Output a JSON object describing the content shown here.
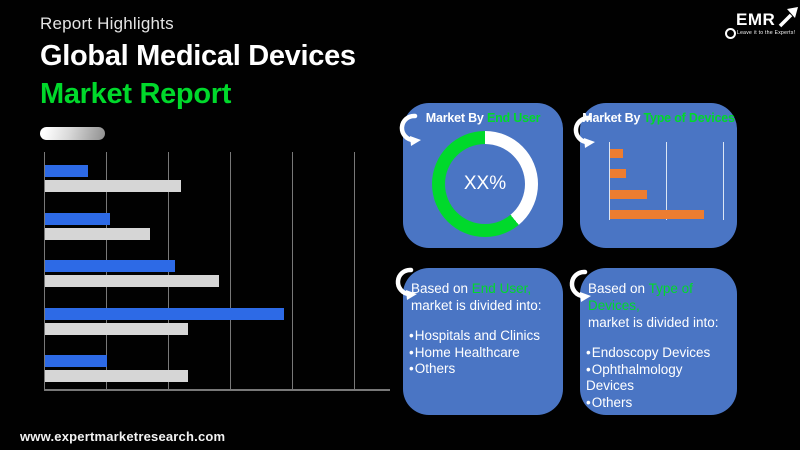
{
  "colors": {
    "background": "#010101",
    "panel_blue": "#4a75c4",
    "green": "#00d92b",
    "chart_blue": "#2d6ae6",
    "chart_gray": "#d6d6d6",
    "orange": "#ed7d31",
    "gridline_gray": "#787878",
    "gridline_light": "#dce6f4"
  },
  "header": {
    "eyebrow": "Report Highlights",
    "title_line1": "Global Medical Devices",
    "title_line2": "Market Report"
  },
  "logo": {
    "name": "EMR",
    "tagline": "Leave it to the Experts!"
  },
  "footer": {
    "url": "www.expertmarketresearch.com"
  },
  "panels": {
    "end_user_chart": {
      "title_prefix": "Market By ",
      "title_highlight": "End User",
      "center_label": "XX%"
    },
    "type_chart": {
      "title_prefix": "Market By ",
      "title_highlight": "Type of Devices"
    },
    "end_user_list": {
      "intro_prefix": "Based on ",
      "intro_highlight": "End User,",
      "intro_line2": "market is divided into:",
      "items": [
        "Hospitals and Clinics",
        "Home Healthcare",
        "Others"
      ]
    },
    "type_list": {
      "intro_prefix": "Based on ",
      "intro_highlight": "Type of Devices,",
      "intro_line2": "market is divided into:",
      "items": [
        "Endoscopy Devices",
        "Ophthalmology Devices",
        "Others"
      ]
    }
  },
  "chart_data": [
    {
      "type": "bar",
      "orientation": "horizontal",
      "title": "",
      "note": "unlabeled decorative report chart; values in gridline units (1 unit = 1 gridline spacing)",
      "categories": [
        "Group 1",
        "Group 2",
        "Group 3",
        "Group 4",
        "Group 5"
      ],
      "series": [
        {
          "name": "series-blue",
          "color": "#2d6ae6",
          "values": [
            0.7,
            1.05,
            2.1,
            3.85,
            1.0
          ]
        },
        {
          "name": "series-gray",
          "color": "#d6d6d6",
          "values": [
            2.2,
            1.7,
            2.8,
            2.3,
            2.3
          ]
        }
      ],
      "xlim": [
        0,
        5.6
      ],
      "gridlines": true,
      "axis_labels": "none",
      "legend": "none"
    },
    {
      "type": "pie",
      "subtype": "donut",
      "title": "Market By End User",
      "center_label": "XX%",
      "segments": [
        {
          "label": "highlighted share",
          "value": 61,
          "color": "#00d92b"
        },
        {
          "label": "remainder",
          "value": 39,
          "color": "#ffffff"
        }
      ],
      "start": "12 o'clock, white clockwise first"
    },
    {
      "type": "bar",
      "orientation": "horizontal",
      "title": "Market By Type of Devices",
      "note": "unlabeled decorative chart; values in gridline units",
      "categories": [
        "Bar 1",
        "Bar 2",
        "Bar 3",
        "Bar 4"
      ],
      "values": [
        0.23,
        0.28,
        0.65,
        1.65
      ],
      "color": "#ed7d31",
      "xlim": [
        0,
        2.2
      ],
      "gridlines": true,
      "axis_labels": "none",
      "legend": "none"
    }
  ]
}
